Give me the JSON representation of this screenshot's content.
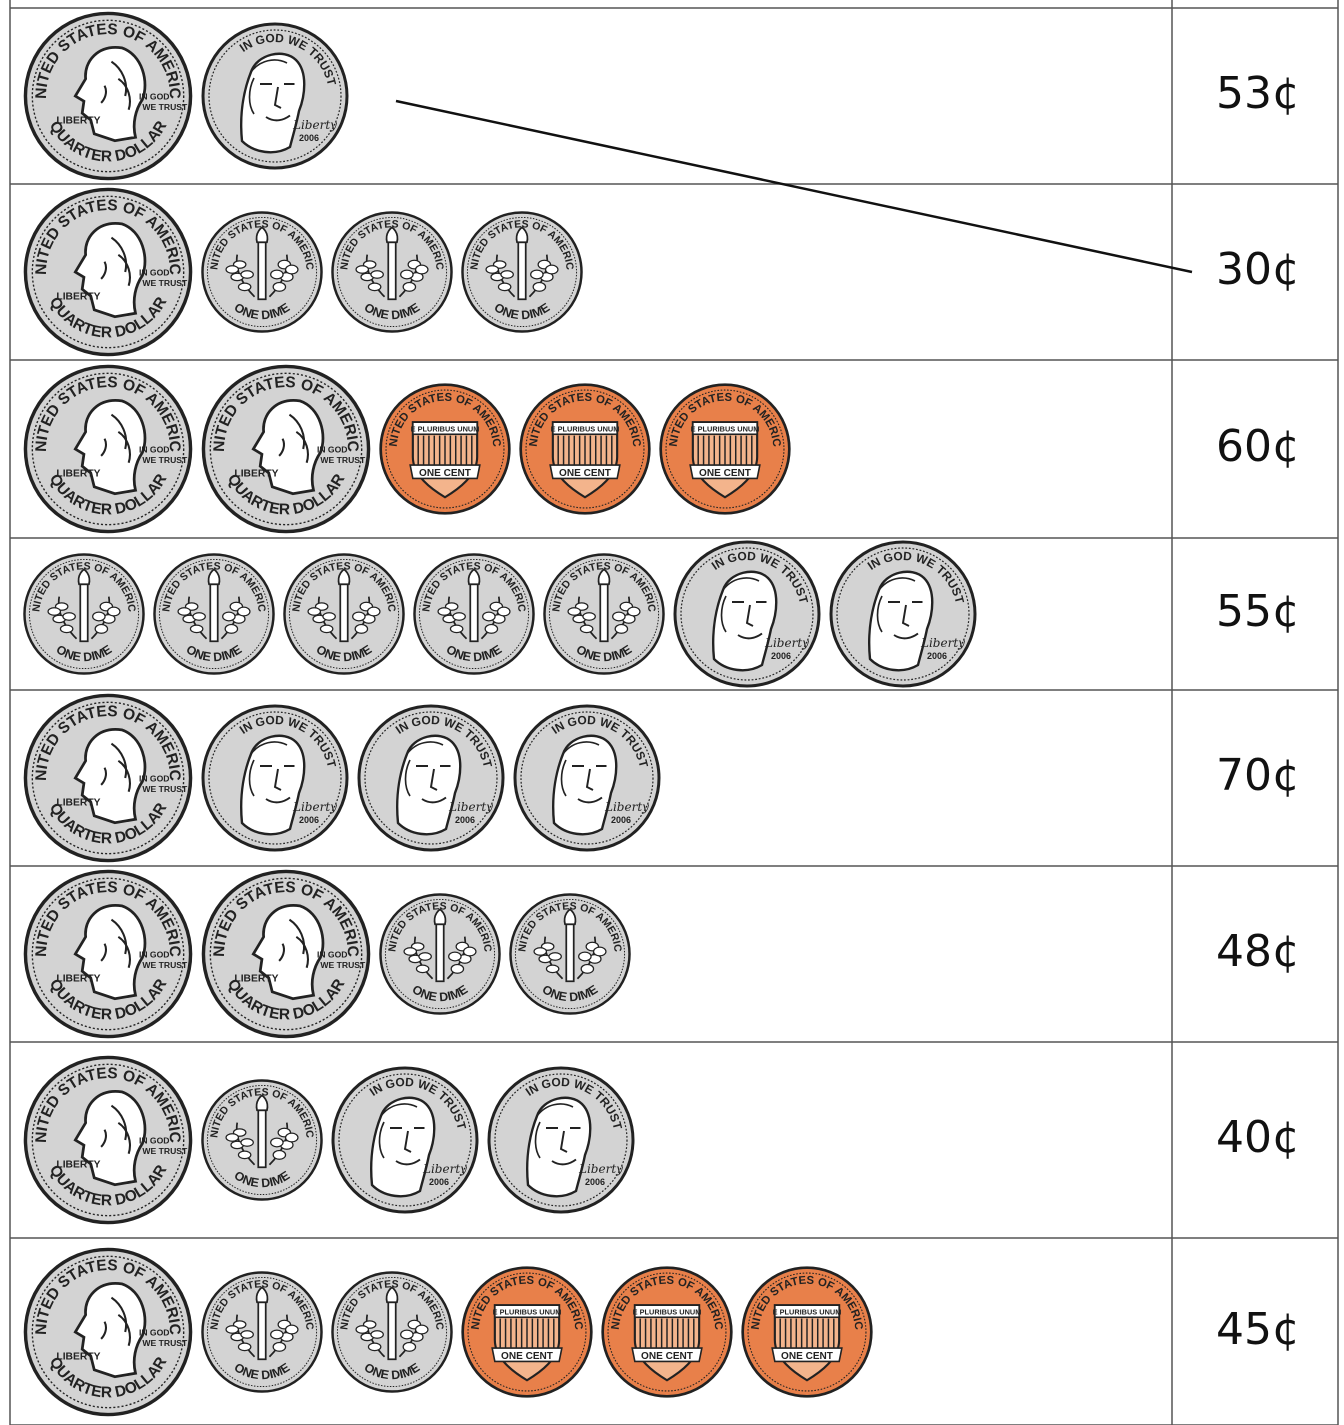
{
  "rows": [
    {
      "coins": [
        "quarter",
        "nickel"
      ],
      "amount": "53¢"
    },
    {
      "coins": [
        "quarter",
        "dime",
        "dime",
        "dime"
      ],
      "amount": "30¢"
    },
    {
      "coins": [
        "quarter",
        "quarter",
        "penny",
        "penny",
        "penny"
      ],
      "amount": "60¢"
    },
    {
      "coins": [
        "dime",
        "dime",
        "dime",
        "dime",
        "dime",
        "nickel",
        "nickel"
      ],
      "amount": "55¢"
    },
    {
      "coins": [
        "quarter",
        "nickel",
        "nickel",
        "nickel"
      ],
      "amount": "70¢"
    },
    {
      "coins": [
        "quarter",
        "quarter",
        "dime",
        "dime"
      ],
      "amount": "48¢"
    },
    {
      "coins": [
        "quarter",
        "dime",
        "nickel",
        "nickel"
      ],
      "amount": "40¢"
    },
    {
      "coins": [
        "quarter",
        "dime",
        "dime",
        "penny",
        "penny",
        "penny"
      ],
      "amount": "45¢"
    }
  ],
  "coin_text": {
    "quarter": {
      "top": "UNITED STATES OF AMERICA",
      "left": "LIBERTY",
      "right": "IN GOD WE TRUST",
      "bottom": "QUARTER DOLLAR"
    },
    "dime": {
      "top": "UNITED STATES OF AMERICA",
      "bottom": "ONE DIME"
    },
    "nickel": {
      "top": "IN GOD WE TRUST",
      "script": "Liberty",
      "year": "2006"
    },
    "penny": {
      "top": "UNITED STATES OF AMERICA",
      "banner": "E PLURIBUS UNUM",
      "bottom": "ONE CENT"
    }
  },
  "drawn_match": {
    "from_row": 0,
    "to_row": 1
  },
  "colors": {
    "silver": "#d3d3d3",
    "copper": "#e8804a",
    "outline": "#222222",
    "grid_line": "#555555"
  }
}
